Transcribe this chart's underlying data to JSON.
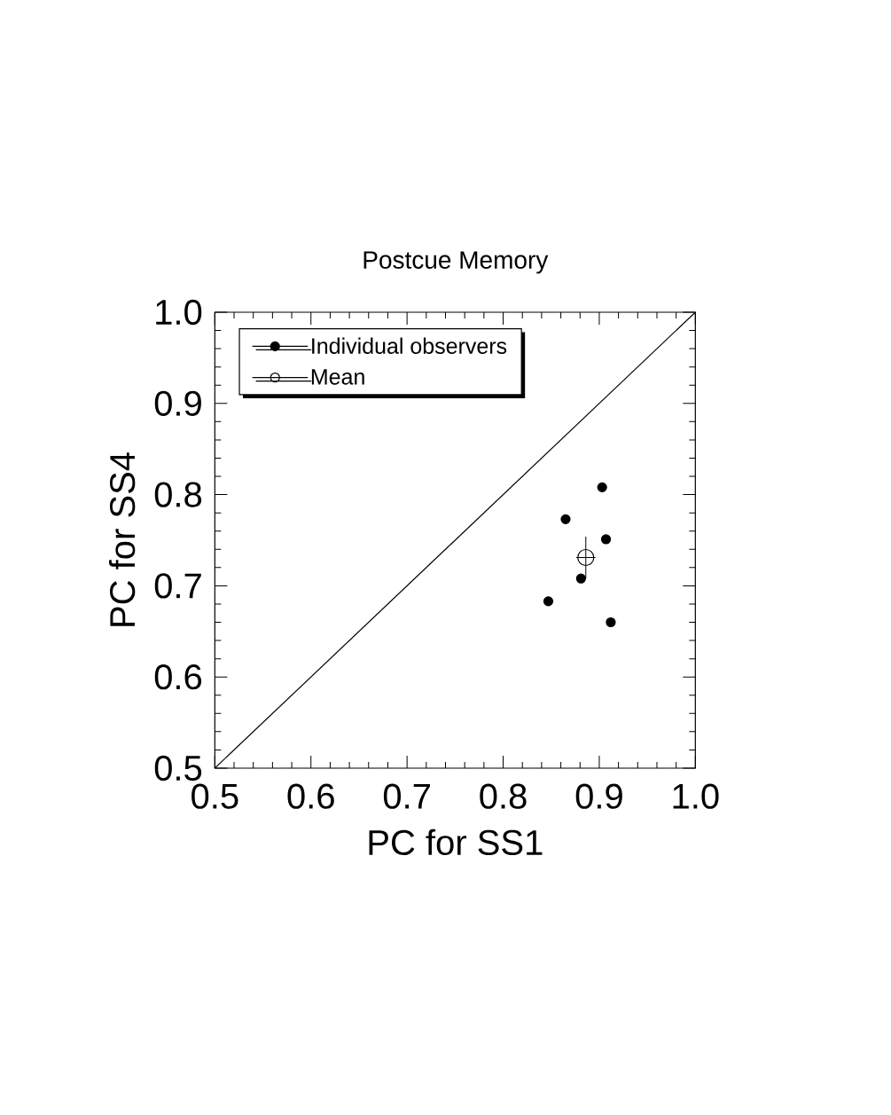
{
  "chart_data": {
    "type": "scatter",
    "title": "Postcue Memory",
    "xlabel": "PC for SS1",
    "ylabel": "PC for SS4",
    "xlim": [
      0.5,
      1.0
    ],
    "ylim": [
      0.5,
      1.0
    ],
    "xticks": [
      0.5,
      0.6,
      0.7,
      0.8,
      0.9,
      {
        "value": 1.0,
        "label": "1.0"
      }
    ],
    "yticks": [
      0.5,
      0.6,
      0.7,
      0.8,
      0.9,
      {
        "value": 1.0,
        "label": "1.0"
      }
    ],
    "legend": "top left",
    "marker": "circle",
    "grid": false,
    "series": [
      {
        "name": "Individual observers",
        "color": "#000000",
        "x": [
          0.903,
          0.865,
          0.907,
          0.881,
          0.847,
          0.912
        ],
        "values": [
          0.808,
          0.773,
          0.751,
          0.708,
          0.683,
          0.66
        ]
      },
      {
        "name": "Mean",
        "color": "#000000",
        "x": [
          0.886
        ],
        "values": [
          0.731
        ],
        "errors": [
          0.023
        ],
        "xerrors": [
          0.01
        ]
      },
      {
        "type": "line",
        "marker": "none",
        "color": "#000000",
        "x": [
          0.5,
          1.0
        ],
        "values": [
          0.5,
          1.0
        ]
      }
    ]
  }
}
